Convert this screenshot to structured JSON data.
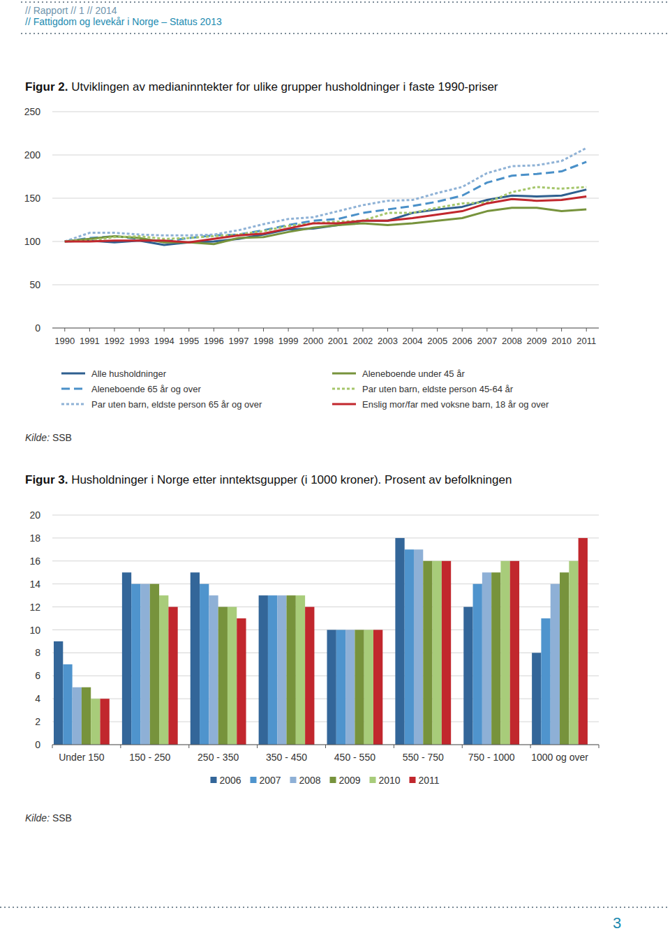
{
  "header": {
    "line1": "// Rapport // 1 // 2014",
    "line2": "// Fattigdom og levekår i Norge – Status 2013"
  },
  "page_number": 3,
  "chart_data": [
    {
      "type": "line",
      "figure_label": "Figur 2.",
      "title": "Utviklingen av medianinntekter for ulike grupper husholdninger i faste 1990-priser",
      "source": {
        "label": "Kilde:",
        "text": "SSB"
      },
      "x": [
        1990,
        1991,
        1992,
        1993,
        1994,
        1995,
        1996,
        1997,
        1998,
        1999,
        2000,
        2001,
        2002,
        2003,
        2004,
        2005,
        2006,
        2007,
        2008,
        2009,
        2010,
        2011
      ],
      "xlim": [
        1989.5,
        2011.5
      ],
      "xticks": [
        1990,
        1991,
        1992,
        1993,
        1994,
        1995,
        1996,
        1997,
        1998,
        1999,
        2000,
        2001,
        2002,
        2003,
        2004,
        2005,
        2006,
        2007,
        2008,
        2009,
        2010,
        2011
      ],
      "ylim": [
        0,
        250
      ],
      "yticks": [
        0,
        50,
        100,
        150,
        200,
        250
      ],
      "grid": true,
      "legend": "bottom",
      "series": [
        {
          "name": "Alle husholdninger",
          "color": "#2e5f8f",
          "line_style": "solid",
          "values": [
            100,
            101,
            99,
            101,
            96,
            99,
            100,
            103,
            108,
            114,
            115,
            119,
            124,
            124,
            133,
            137,
            140,
            148,
            153,
            152,
            153,
            160
          ]
        },
        {
          "name": "Aleneboende 65 år og over",
          "color": "#4a90c8",
          "line_style": "dashed",
          "values": [
            100,
            104,
            106,
            103,
            100,
            104,
            107,
            108,
            113,
            119,
            124,
            126,
            133,
            137,
            141,
            146,
            153,
            168,
            176,
            178,
            181,
            192
          ]
        },
        {
          "name": "Par uten barn, eldste person 65 år og over",
          "color": "#8fb2d6",
          "line_style": "dotted",
          "values": [
            100,
            110,
            110,
            108,
            107,
            107,
            108,
            113,
            120,
            126,
            128,
            135,
            142,
            147,
            148,
            156,
            163,
            179,
            187,
            188,
            193,
            208
          ]
        },
        {
          "name": "Aleneboende under 45 år",
          "color": "#77933c",
          "line_style": "solid",
          "values": [
            100,
            103,
            106,
            104,
            99,
            99,
            97,
            104,
            105,
            111,
            116,
            119,
            121,
            119,
            121,
            124,
            127,
            135,
            139,
            139,
            135,
            137
          ]
        },
        {
          "name": "Par uten barn, eldste person 45-64 år",
          "color": "#a5c66b",
          "line_style": "dotted",
          "values": [
            100,
            101,
            105,
            106,
            103,
            104,
            106,
            108,
            112,
            118,
            121,
            123,
            124,
            133,
            133,
            139,
            144,
            145,
            157,
            163,
            161,
            163
          ]
        },
        {
          "name": "Enslig mor/far med voksne barn, 18 år og over",
          "color": "#c1272d",
          "line_style": "solid",
          "values": [
            100,
            100,
            101,
            101,
            101,
            99,
            103,
            107,
            109,
            115,
            121,
            121,
            124,
            124,
            127,
            131,
            135,
            144,
            149,
            147,
            148,
            152
          ]
        }
      ]
    },
    {
      "type": "bar",
      "figure_label": "Figur 3.",
      "title": "Husholdninger i Norge etter inntektsgupper (i 1000 kroner). Prosent av befolkningen",
      "source": {
        "label": "Kilde:",
        "text": "SSB"
      },
      "categories": [
        "Under 150",
        "150 - 250",
        "250 - 350",
        "350 - 450",
        "450 - 550",
        "550 - 750",
        "750 - 1000",
        "1000 og over"
      ],
      "ylim": [
        0,
        20
      ],
      "yticks": [
        0,
        2,
        4,
        6,
        8,
        10,
        12,
        14,
        16,
        18,
        20
      ],
      "grid": true,
      "legend": "bottom",
      "series": [
        {
          "name": "2006",
          "color": "#336699",
          "values": [
            9,
            15,
            15,
            13,
            10,
            18,
            12,
            8
          ]
        },
        {
          "name": "2007",
          "color": "#4f94cd",
          "values": [
            7,
            14,
            14,
            13,
            10,
            17,
            14,
            11
          ]
        },
        {
          "name": "2008",
          "color": "#8eb0d6",
          "values": [
            5,
            14,
            13,
            13,
            10,
            17,
            15,
            14
          ]
        },
        {
          "name": "2009",
          "color": "#77933c",
          "values": [
            5,
            14,
            12,
            13,
            10,
            16,
            15,
            15
          ]
        },
        {
          "name": "2010",
          "color": "#a8cc7a",
          "values": [
            4,
            13,
            12,
            13,
            10,
            16,
            16,
            16
          ]
        },
        {
          "name": "2011",
          "color": "#c1272d",
          "values": [
            4,
            12,
            11,
            12,
            10,
            16,
            16,
            18
          ]
        }
      ]
    }
  ]
}
